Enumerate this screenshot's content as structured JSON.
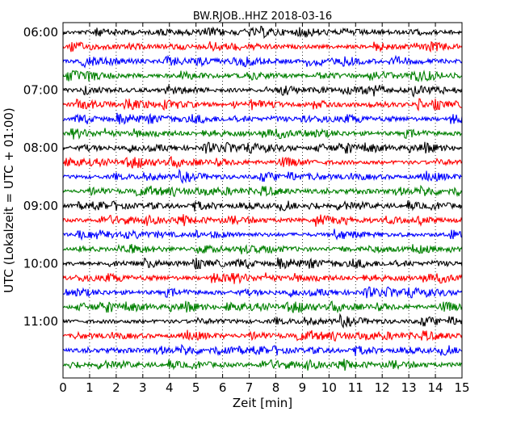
{
  "chart_data": {
    "type": "line",
    "title": "BW.RJOB..HHZ 2018-03-16",
    "xlabel": "Zeit  [min]",
    "ylabel": "UTC (Lokalzeit = UTC + 01:00)",
    "xlim": [
      0,
      15
    ],
    "xticks": [
      "0",
      "1",
      "2",
      "3",
      "4",
      "5",
      "6",
      "7",
      "8",
      "9",
      "10",
      "11",
      "12",
      "13",
      "14",
      "15"
    ],
    "yticks": [
      {
        "label": "06:00",
        "trace": 0
      },
      {
        "label": "07:00",
        "trace": 4
      },
      {
        "label": "08:00",
        "trace": 8
      },
      {
        "label": "09:00",
        "trace": 12
      },
      {
        "label": "10:00",
        "trace": 16
      },
      {
        "label": "11:00",
        "trace": 20
      }
    ],
    "grid": "x-dotted",
    "trace_start_time": "06:00",
    "trace_interval_minutes": 15,
    "trace_count": 24,
    "colors": [
      "#000000",
      "#ff0000",
      "#0000ff",
      "#008000"
    ]
  }
}
